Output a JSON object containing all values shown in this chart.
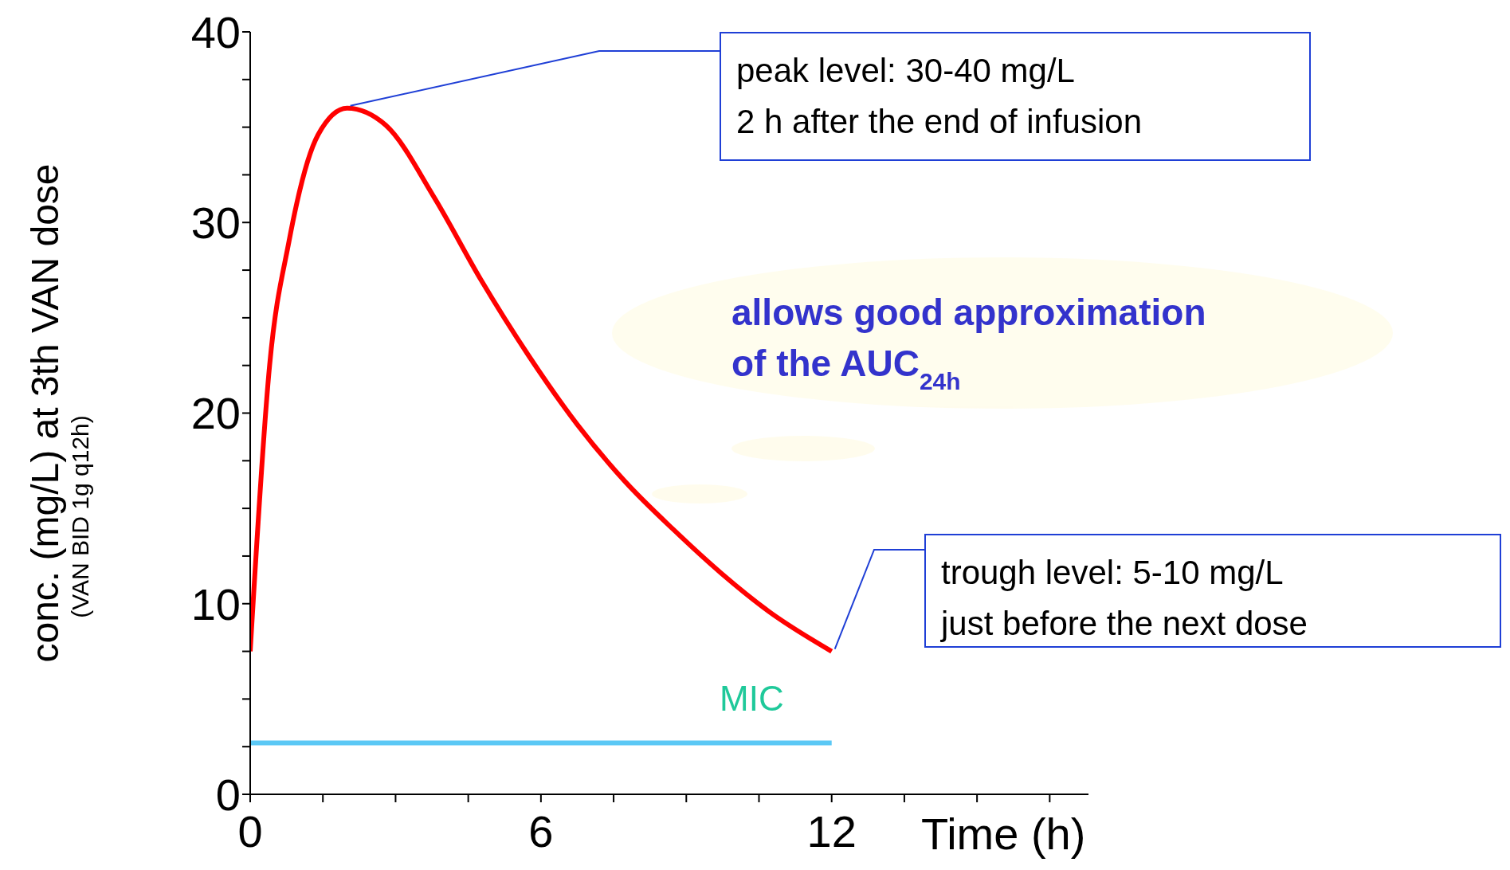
{
  "chart_data": {
    "type": "line",
    "ylabel": "conc. (mg/L) at 3th VAN dose\n(VAN BID 1g q12h)",
    "xlabel": "Time (h)",
    "xlim": [
      0,
      17.3
    ],
    "xticks": [
      0,
      {
        "value": 1.5,
        "label": null
      },
      {
        "value": 3,
        "label": null
      },
      {
        "value": 4.5,
        "label": null
      },
      6,
      {
        "value": 7.5,
        "label": null
      },
      {
        "value": 9,
        "label": null
      },
      {
        "value": 10.5,
        "label": null
      },
      12,
      {
        "value": 13.5,
        "label": null
      },
      {
        "value": 15,
        "label": null
      },
      {
        "value": 16.5,
        "label": null
      }
    ],
    "ylim": [
      0,
      40
    ],
    "yticks": [
      0,
      {
        "value": 2.5,
        "label": null
      },
      {
        "value": 5,
        "label": null
      },
      {
        "value": 7.5,
        "label": null
      },
      10,
      {
        "value": 12.5,
        "label": null
      },
      {
        "value": 15,
        "label": null
      },
      {
        "value": 17.5,
        "label": null
      },
      20,
      {
        "value": 22.5,
        "label": null
      },
      {
        "value": 25,
        "label": null
      },
      {
        "value": 27.5,
        "label": null
      },
      30,
      {
        "value": 32.5,
        "label": null
      },
      {
        "value": 35,
        "label": null
      },
      {
        "value": 37.5,
        "label": null
      },
      40
    ],
    "grid": false,
    "legend": false,
    "marker": "none",
    "line_style": "solid",
    "series": [
      {
        "color": "#ff0000",
        "x": [
          0,
          0.4,
          0.8,
          1.4,
          2,
          2.8,
          3.8,
          4.76,
          5.75,
          6.75,
          7.74,
          8.73,
          9.72,
          10.7,
          12
        ],
        "values": [
          7.5,
          22.5,
          29,
          34.6,
          36,
          35.1,
          31.3,
          27,
          23,
          19.4,
          16.4,
          13.9,
          11.6,
          9.6,
          7.5
        ]
      },
      {
        "name": "MIC",
        "color": "#5bc8f5",
        "x": [
          0,
          12
        ],
        "values": [
          2.7,
          2.7
        ]
      }
    ],
    "annotations": [
      {
        "text": "peak level: 30-40 mg/L\n2 h after the end of infusion",
        "x": 2,
        "y": 36
      },
      {
        "text": "trough level: 5-10 mg/L\njust before the next dose",
        "x": 12,
        "y": 7.5
      },
      "allows good approximation\nof the AUC$_{24h}$"
    ]
  }
}
